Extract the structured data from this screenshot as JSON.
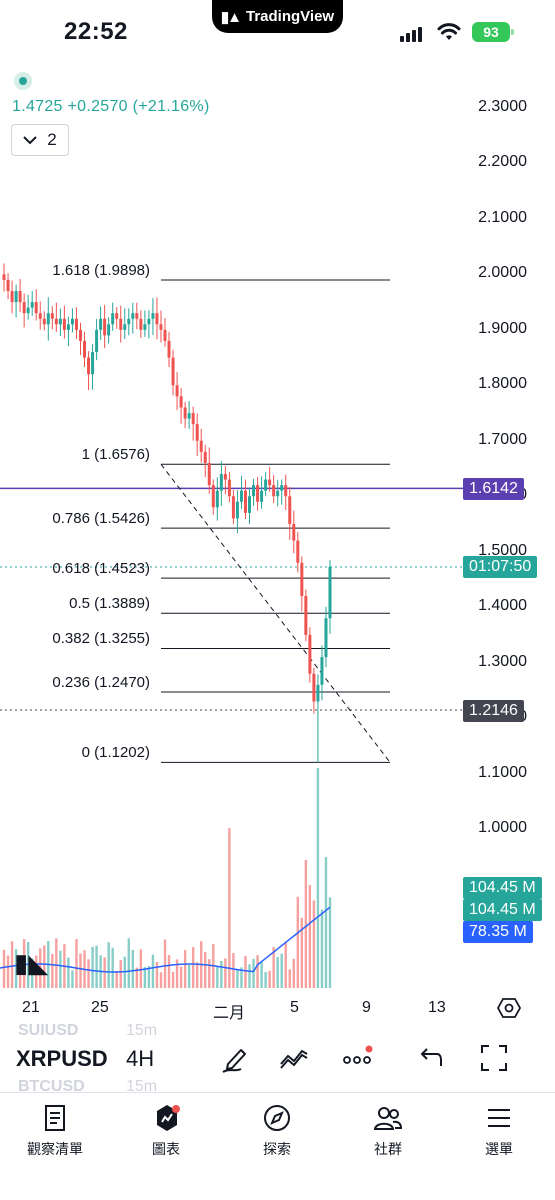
{
  "status_bar": {
    "time": "22:52",
    "app_badge": "TradingView",
    "battery": "93"
  },
  "legend": {
    "last_change": "1.4725  +0.2570 (+21.16%)",
    "collapse_count": "2"
  },
  "price_axis": [
    "2.3000",
    "2.2000",
    "2.1000",
    "2.0000",
    "1.9000",
    "1.8000",
    "1.7000",
    "1.6000",
    "1.5000",
    "1.4000",
    "1.3000",
    "1.2000",
    "1.1000",
    "1.0000"
  ],
  "time_axis": [
    "21",
    "25",
    "二月",
    "5",
    "9",
    "13"
  ],
  "fib_levels": [
    {
      "label": "1.618 (1.9898)",
      "price": 1.9898
    },
    {
      "label": "1 (1.6576)",
      "price": 1.6576
    },
    {
      "label": "0.786 (1.5426)",
      "price": 1.5426
    },
    {
      "label": "0.618 (1.4523)",
      "price": 1.4523
    },
    {
      "label": "0.5 (1.3889)",
      "price": 1.3889
    },
    {
      "label": "0.382 (1.3255)",
      "price": 1.3255
    },
    {
      "label": "0.236 (1.2470)",
      "price": 1.247
    },
    {
      "label": "0 (1.1202)",
      "price": 1.1202
    }
  ],
  "price_tags": {
    "alert_line": "1.6142",
    "countdown": "01:07:50",
    "crosshair_price": "1.2146",
    "volume_1": "104.45 M",
    "volume_2": "104.45 M",
    "volume_ma": "78.35 M"
  },
  "colors": {
    "up": "#26a69a",
    "down": "#ef5350",
    "alert_line": "#5b3fb0",
    "volume_ma": "#2962ff",
    "fib_line": "#131722"
  },
  "toolbar": {
    "symbol": "XRPUSD",
    "interval": "4H",
    "watermark_symbol_1": "SUIUSD",
    "watermark_tf_1": "15m",
    "watermark_symbol_2": "BTCUSD",
    "watermark_tf_2": "15m",
    "icons": [
      "pen-icon",
      "trend-tool-icon",
      "more-icon",
      "undo-icon",
      "fullscreen-icon"
    ]
  },
  "bottom_nav": [
    {
      "label": "觀察清單",
      "icon": "watchlist-icon"
    },
    {
      "label": "圖表",
      "icon": "chart-icon"
    },
    {
      "label": "探索",
      "icon": "compass-icon"
    },
    {
      "label": "社群",
      "icon": "community-icon"
    },
    {
      "label": "選單",
      "icon": "menu-icon"
    }
  ],
  "chart_data": {
    "type": "candlestick",
    "symbol": "XRPUSD",
    "interval": "4H",
    "ylim": [
      0.95,
      2.35
    ],
    "x_ticks": [
      "21",
      "25",
      "二月",
      "5",
      "9",
      "13"
    ],
    "ohlc_path": [
      2.0,
      1.99,
      1.97,
      1.95,
      1.97,
      1.95,
      1.93,
      1.94,
      1.95,
      1.93,
      1.92,
      1.91,
      1.93,
      1.92,
      1.91,
      1.92,
      1.9,
      1.91,
      1.92,
      1.9,
      1.88,
      1.85,
      1.82,
      1.86,
      1.9,
      1.92,
      1.89,
      1.91,
      1.93,
      1.92,
      1.9,
      1.91,
      1.92,
      1.93,
      1.92,
      1.9,
      1.91,
      1.92,
      1.93,
      1.91,
      1.9,
      1.88,
      1.85,
      1.8,
      1.78,
      1.76,
      1.74,
      1.75,
      1.73,
      1.7,
      1.68,
      1.66,
      1.62,
      1.58,
      1.61,
      1.64,
      1.63,
      1.6,
      1.56,
      1.59,
      1.61,
      1.57,
      1.6,
      1.62,
      1.59,
      1.61,
      1.63,
      1.62,
      1.6,
      1.61,
      1.62,
      1.6,
      1.55,
      1.52,
      1.48,
      1.42,
      1.35,
      1.28,
      1.23,
      1.26,
      1.31,
      1.38,
      1.4725
    ],
    "volume_ma_last": "78.35 M",
    "volume_last": "104.45 M"
  }
}
